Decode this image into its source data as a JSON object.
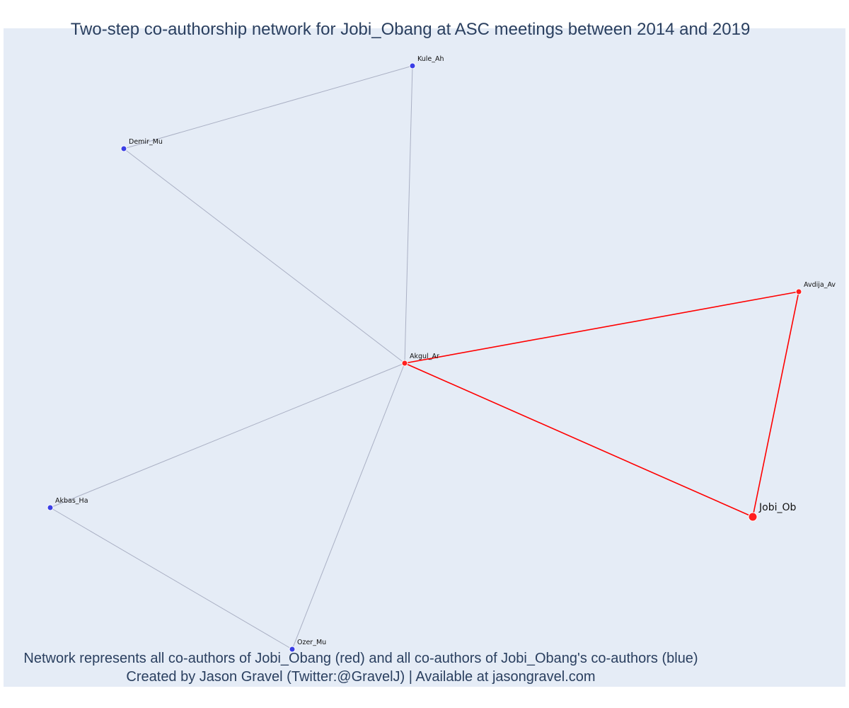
{
  "title": "Two-step co-authorship network for Jobi_Obang at ASC meetings between 2014 and 2019",
  "caption": {
    "line1": "Network represents all co-authors of Jobi_Obang (red) and all co-authors of Jobi_Obang's co-authors (blue)",
    "line2": "Created by Jason Gravel (Twitter:@GravelJ) | Available at jasongravel.com"
  },
  "colors": {
    "background": "#e5ecf6",
    "first_degree": "#ff1f1f",
    "second_degree": "#3b3fe6",
    "edge_gray": "#aab0c4",
    "edge_red": "#ff0000",
    "text": "#2a3f5f"
  },
  "nodes": [
    {
      "id": "Kule_Ah",
      "label": "Kule_Ah",
      "group": "second_degree"
    },
    {
      "id": "Demir_Mu",
      "label": "Demir_Mu",
      "group": "second_degree"
    },
    {
      "id": "Avdija_Av",
      "label": "Avdija_Av",
      "group": "first_degree"
    },
    {
      "id": "Akgul_Ar",
      "label": "Akgul_Ar",
      "group": "first_degree"
    },
    {
      "id": "Jobi_Ob",
      "label": "Jobi_Ob",
      "group": "ego"
    },
    {
      "id": "Akbas_Ha",
      "label": "Akbas_Ha",
      "group": "second_degree"
    },
    {
      "id": "Ozer_Mu",
      "label": "Ozer_Mu",
      "group": "second_degree"
    }
  ],
  "edges": [
    {
      "source": "Kule_Ah",
      "target": "Demir_Mu",
      "group": "gray"
    },
    {
      "source": "Kule_Ah",
      "target": "Akgul_Ar",
      "group": "gray"
    },
    {
      "source": "Demir_Mu",
      "target": "Akgul_Ar",
      "group": "gray"
    },
    {
      "source": "Akgul_Ar",
      "target": "Akbas_Ha",
      "group": "gray"
    },
    {
      "source": "Akgul_Ar",
      "target": "Ozer_Mu",
      "group": "gray"
    },
    {
      "source": "Akbas_Ha",
      "target": "Ozer_Mu",
      "group": "gray"
    },
    {
      "source": "Akgul_Ar",
      "target": "Avdija_Av",
      "group": "red"
    },
    {
      "source": "Akgul_Ar",
      "target": "Jobi_Ob",
      "group": "red"
    },
    {
      "source": "Avdija_Av",
      "target": "Jobi_Ob",
      "group": "red"
    }
  ]
}
